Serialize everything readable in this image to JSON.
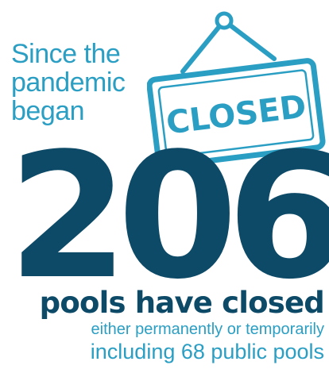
{
  "intro": {
    "line1": "Since the",
    "line2": "pandemic",
    "line3": "began"
  },
  "sign": {
    "text": "CLOSED",
    "icon": "closed-sign-icon"
  },
  "stat": {
    "value": "206",
    "headline": "pools have closed",
    "detail": "either permanently or temporarily",
    "extra": "including 68 public pools"
  },
  "colors": {
    "dark": "#0d4a67",
    "accent": "#2a9ec3"
  }
}
